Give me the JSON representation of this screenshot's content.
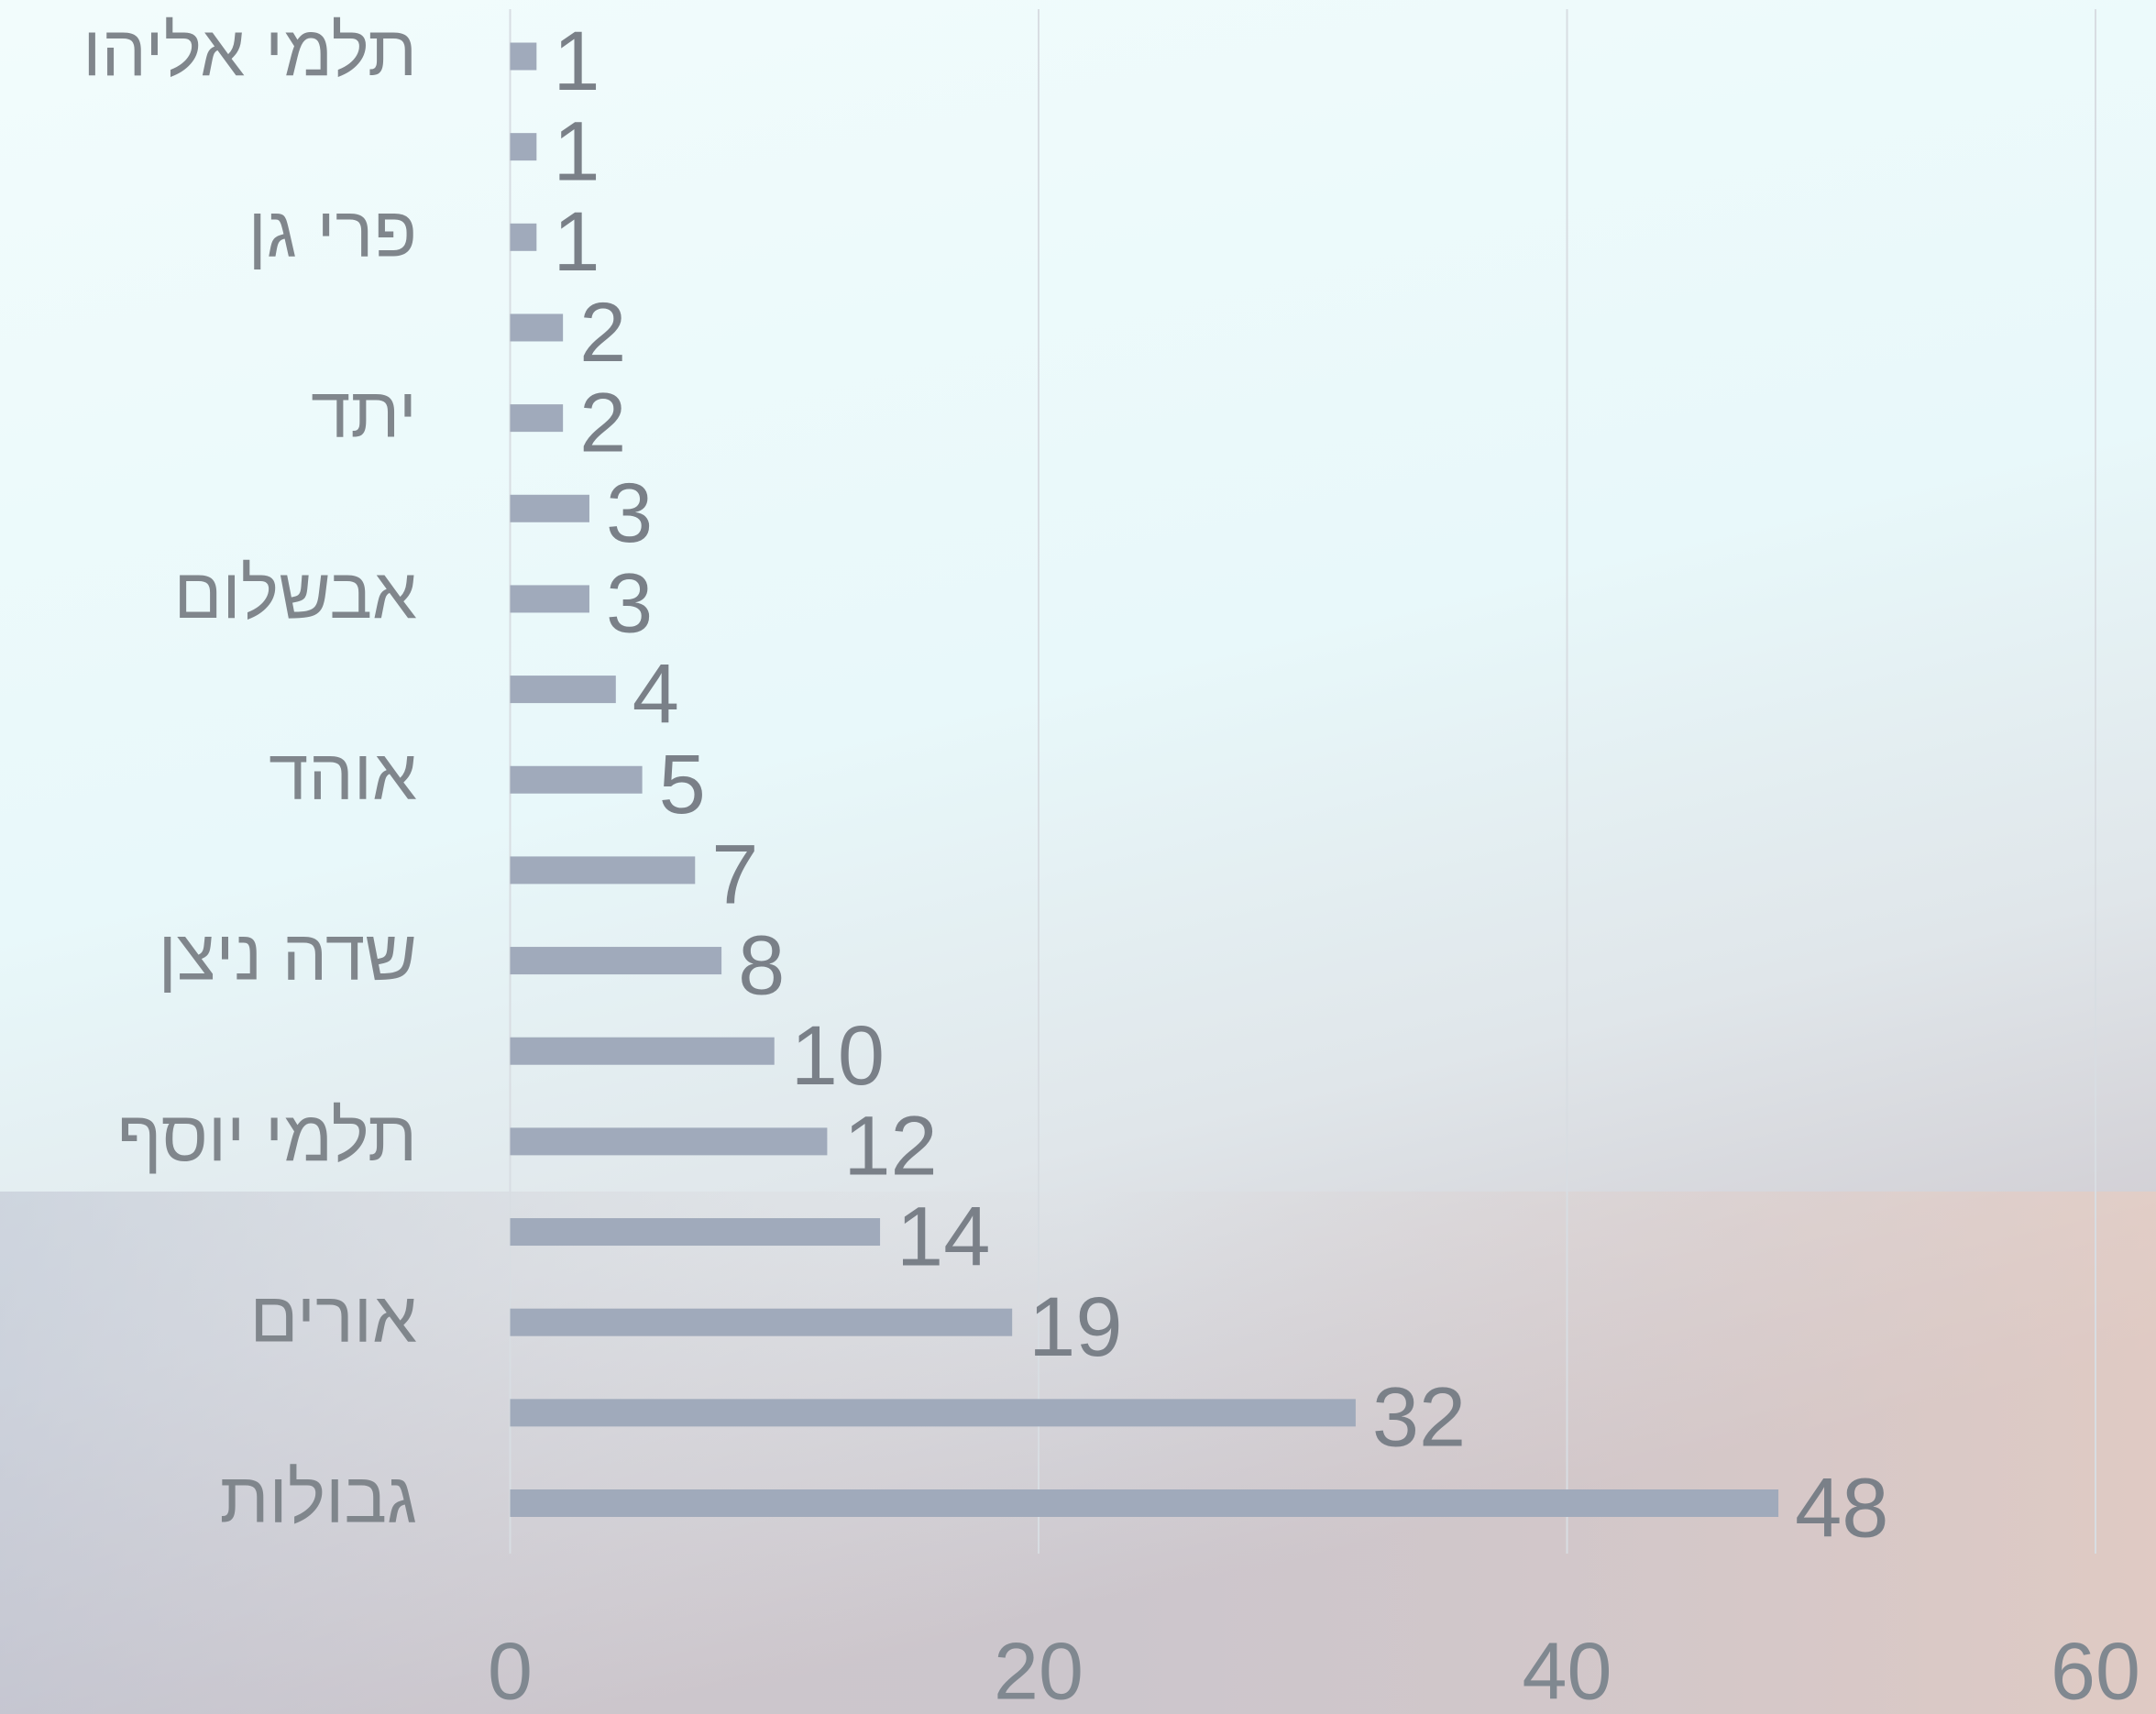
{
  "chart_data": {
    "type": "barh",
    "categories": [
      "תלמי אליהו",
      null,
      "פרי גן",
      null,
      "יתד",
      null,
      "אבשלום",
      null,
      "אוהד",
      null,
      "שדה ניצן",
      null,
      "תלמי יוסף",
      null,
      "אורים",
      null,
      "גבולות"
    ],
    "values": [
      1,
      1,
      1,
      2,
      2,
      3,
      3,
      4,
      5,
      7,
      8,
      10,
      12,
      14,
      19,
      32,
      48
    ],
    "color": "#a0aabb",
    "xlim": [
      0,
      60
    ],
    "xticks": [
      0,
      20,
      40,
      60
    ],
    "grid": true
  }
}
